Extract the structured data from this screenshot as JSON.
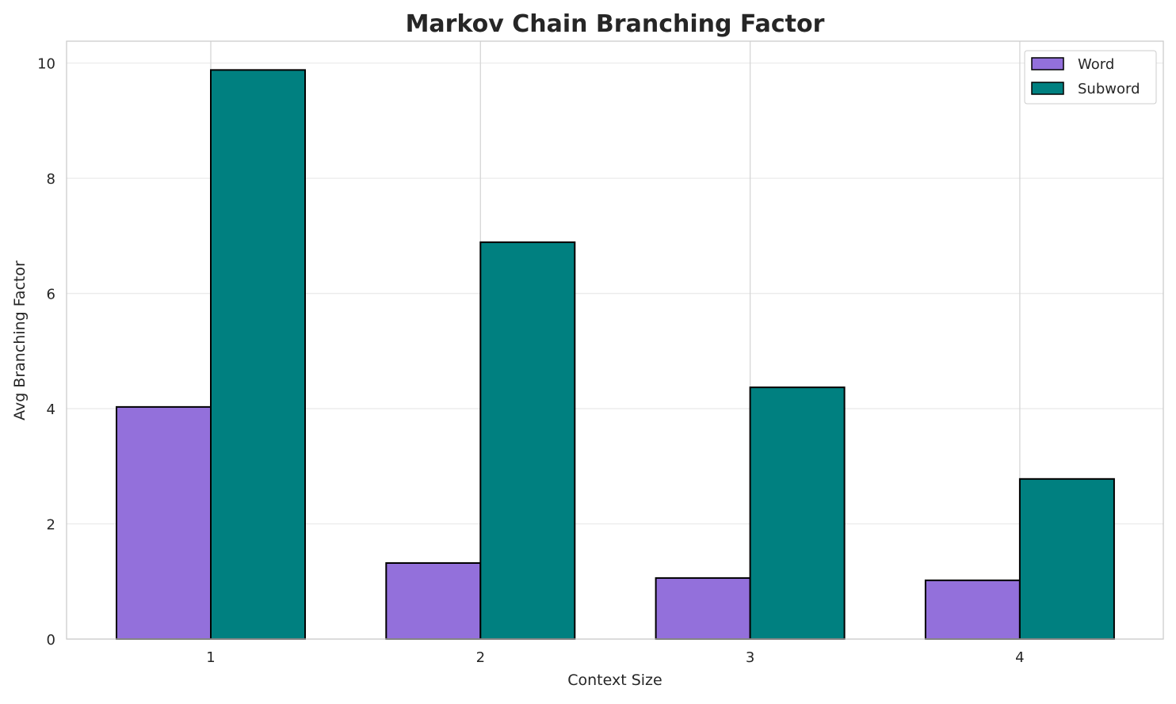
{
  "chart_data": {
    "type": "bar",
    "title": "Markov Chain Branching Factor",
    "xlabel": "Context Size",
    "ylabel": "Avg Branching Factor",
    "categories": [
      "1",
      "2",
      "3",
      "4"
    ],
    "series": [
      {
        "name": "Word",
        "color": "#9370DB",
        "values": [
          4.03,
          1.32,
          1.06,
          1.02
        ]
      },
      {
        "name": "Subword",
        "color": "#008080",
        "values": [
          9.88,
          6.89,
          4.37,
          2.78
        ]
      }
    ],
    "yticks": [
      0,
      2,
      4,
      6,
      8,
      10
    ],
    "ylim": [
      0,
      10.38
    ],
    "grid": true,
    "legend_position": "top-right"
  }
}
